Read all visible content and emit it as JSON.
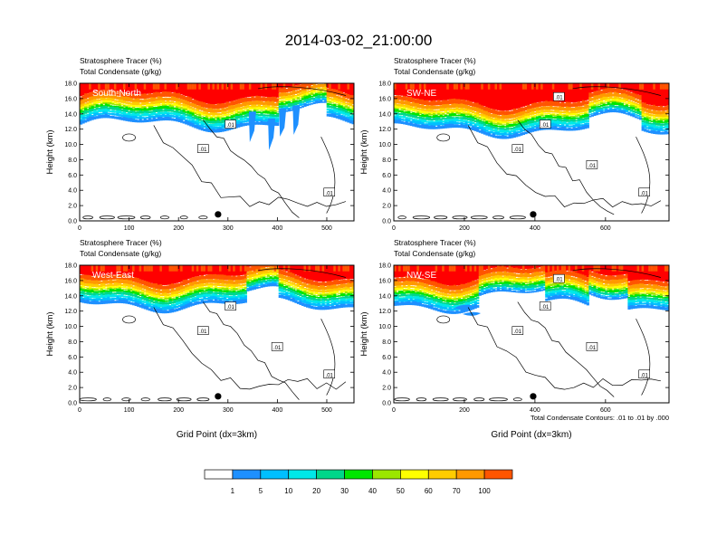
{
  "figure": {
    "title": "2014-03-02_21:00:00",
    "contour_note": "Total Condensate Contours: .01 to .01 by .000"
  },
  "colors": {
    "levels": [
      "#ffffff",
      "#1e90ff",
      "#00bfff",
      "#00e8e8",
      "#00d78a",
      "#00e600",
      "#9be600",
      "#ffff00",
      "#ffcc00",
      "#ff9900",
      "#ff5500",
      "#ff0000"
    ]
  },
  "chart_data": [
    {
      "type": "heatmap",
      "cross_section": "South-North",
      "line1": "Stratosphere Tracer   (%)",
      "line2": "Total Condensate   (g/kg)",
      "ylabel": "Height (km)",
      "xlabel": "",
      "xlim": [
        0,
        555
      ],
      "ylim": [
        0,
        18
      ],
      "xticks": [
        0,
        100,
        200,
        300,
        400,
        500
      ],
      "yticks": [
        "0.0",
        "2.0",
        "4.0",
        "6.0",
        "8.0",
        "10.0",
        "12.0",
        "14.0",
        "16.0",
        "18.0"
      ],
      "contour_labels": [
        ".01",
        ".01",
        ".01"
      ],
      "marker_x": 280
    },
    {
      "type": "heatmap",
      "cross_section": "SW-NE",
      "line1": "Stratosphere Tracer   (%)",
      "line2": "Total Condensate   (g/kg)",
      "ylabel": "Height (km)",
      "xlabel": "",
      "xlim": [
        0,
        780
      ],
      "ylim": [
        0,
        18
      ],
      "xticks": [
        0,
        200,
        400,
        600
      ],
      "yticks": [
        "0.0",
        "2.0",
        "4.0",
        "6.0",
        "8.0",
        "10.0",
        "12.0",
        "14.0",
        "16.0",
        "18.0"
      ],
      "contour_labels": [
        ".01",
        ".01",
        ".01",
        ".01",
        ".01"
      ],
      "marker_x": 395
    },
    {
      "type": "heatmap",
      "cross_section": "West-East",
      "line1": "Stratosphere Tracer   (%)",
      "line2": "Total Condensate   (g/kg)",
      "ylabel": "Height (km)",
      "xlabel": "Grid Point (dx=3km)",
      "xlim": [
        0,
        555
      ],
      "ylim": [
        0,
        18
      ],
      "xticks": [
        0,
        100,
        200,
        300,
        400,
        500
      ],
      "yticks": [
        "0.0",
        "2.0",
        "4.0",
        "6.0",
        "8.0",
        "10.0",
        "12.0",
        "14.0",
        "16.0",
        "18.0"
      ],
      "contour_labels": [
        ".01",
        ".01",
        ".01",
        ".01"
      ],
      "marker_x": 280
    },
    {
      "type": "heatmap",
      "cross_section": "NW-SE",
      "line1": "Stratosphere Tracer   (%)",
      "line2": "Total Condensate   (g/kg)",
      "ylabel": "Height (km)",
      "xlabel": "Grid Point (dx=3km)",
      "xlim": [
        0,
        780
      ],
      "ylim": [
        0,
        18
      ],
      "xticks": [
        0,
        200,
        400,
        600
      ],
      "yticks": [
        "0.0",
        "2.0",
        "4.0",
        "6.0",
        "8.0",
        "10.0",
        "12.0",
        "14.0",
        "16.0",
        "18.0"
      ],
      "contour_labels": [
        ".01",
        ".01",
        ".01",
        ".01",
        ".01"
      ],
      "marker_x": 395
    }
  ],
  "colorbar": {
    "labels": [
      "1",
      "5",
      "10",
      "20",
      "30",
      "40",
      "50",
      "60",
      "70",
      "100"
    ]
  }
}
